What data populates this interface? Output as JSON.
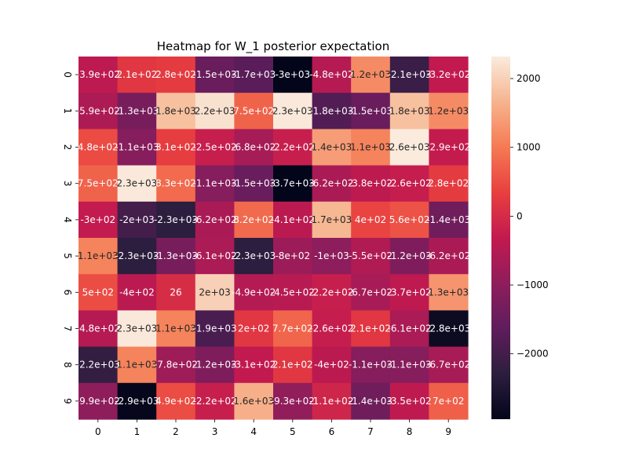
{
  "chart_data": {
    "type": "heatmap",
    "title": "Heatmap for W_1 posterior expectation",
    "xlabel": "",
    "ylabel": "",
    "x_categories": [
      "0",
      "1",
      "2",
      "3",
      "4",
      "5",
      "6",
      "7",
      "8",
      "9"
    ],
    "y_categories": [
      "0",
      "1",
      "2",
      "3",
      "4",
      "5",
      "6",
      "7",
      "8",
      "9"
    ],
    "values": [
      [
        -390,
        210,
        280,
        -1500,
        -1700,
        -3000,
        -480,
        1200,
        -2100,
        -320
      ],
      [
        -590,
        -1300,
        1800,
        2200,
        750,
        2300,
        -1800,
        -1500,
        1800,
        1200
      ],
      [
        480,
        -1100,
        310,
        -250,
        -680,
        -220,
        1400,
        1100,
        2600,
        -290
      ],
      [
        750,
        2300,
        830,
        -1100,
        -1500,
        -3700,
        -620,
        -380,
        -260,
        280
      ],
      [
        -300,
        -2000,
        -2300,
        -620,
        820,
        -410,
        1700,
        400,
        560,
        -1400
      ],
      [
        1100,
        -2300,
        -1300,
        -610,
        -2300,
        -800,
        -1000,
        -550,
        -1200,
        -620
      ],
      [
        500,
        -400,
        26,
        2000,
        -490,
        -450,
        -220,
        -670,
        -370,
        1300
      ],
      [
        -480,
        2300,
        1100,
        -1900,
        200,
        770,
        -260,
        210,
        -610,
        -2800
      ],
      [
        -2200,
        1100,
        -780,
        -1200,
        -310,
        210,
        -400,
        -1100,
        -1100,
        -670
      ],
      [
        -990,
        -2900,
        490,
        -220,
        1600,
        -930,
        -110,
        -1400,
        -350,
        700
      ]
    ],
    "cell_labels": [
      [
        "-3.9e+02",
        "2.1e+02",
        "2.8e+02",
        "-1.5e+03",
        "-1.7e+03",
        "-3e+03",
        "-4.8e+02",
        "1.2e+03",
        "-2.1e+03",
        "-3.2e+02"
      ],
      [
        "-5.9e+02",
        "-1.3e+03",
        "1.8e+03",
        "2.2e+03",
        "7.5e+02",
        "2.3e+03",
        "-1.8e+03",
        "-1.5e+03",
        "1.8e+03",
        "1.2e+03"
      ],
      [
        "4.8e+02",
        "-1.1e+03",
        "3.1e+02",
        "-2.5e+02",
        "-6.8e+02",
        "-2.2e+02",
        "1.4e+03",
        "1.1e+03",
        "2.6e+03",
        "-2.9e+02"
      ],
      [
        "7.5e+02",
        "2.3e+03",
        "8.3e+02",
        "-1.1e+03",
        "-1.5e+03",
        "-3.7e+03",
        "-6.2e+02",
        "-3.8e+02",
        "-2.6e+02",
        "2.8e+02"
      ],
      [
        "-3e+02",
        "-2e+03",
        "-2.3e+03",
        "-6.2e+02",
        "8.2e+02",
        "-4.1e+02",
        "1.7e+03",
        "4e+02",
        "5.6e+02",
        "-1.4e+03"
      ],
      [
        "1.1e+03",
        "-2.3e+03",
        "-1.3e+03",
        "-6.1e+02",
        "-2.3e+03",
        "-8e+02",
        "-1e+03",
        "-5.5e+02",
        "-1.2e+03",
        "-6.2e+02"
      ],
      [
        "5e+02",
        "-4e+02",
        "26",
        "2e+03",
        "-4.9e+02",
        "-4.5e+02",
        "-2.2e+02",
        "-6.7e+02",
        "-3.7e+02",
        "1.3e+03"
      ],
      [
        "-4.8e+02",
        "2.3e+03",
        "1.1e+03",
        "-1.9e+03",
        "2e+02",
        "7.7e+02",
        "-2.6e+02",
        "2.1e+02",
        "-6.1e+02",
        "-2.8e+03"
      ],
      [
        "-2.2e+03",
        "1.1e+03",
        "-7.8e+02",
        "-1.2e+03",
        "-3.1e+02",
        "2.1e+02",
        "-4e+02",
        "-1.1e+03",
        "-1.1e+03",
        "-6.7e+02"
      ],
      [
        "-9.9e+02",
        "-2.9e+03",
        "4.9e+02",
        "-2.2e+02",
        "1.6e+03",
        "-9.3e+02",
        "-1.1e+02",
        "-1.4e+03",
        "-3.5e+02",
        "7e+02"
      ]
    ],
    "colorbar": {
      "colormap": "rocket",
      "range": [
        -2950,
        2320
      ],
      "ticks": [
        2000,
        1000,
        0,
        -1000,
        -2000
      ],
      "tick_labels": [
        "2000",
        "1000",
        "0",
        "−1000",
        "−2000"
      ]
    },
    "grid": false,
    "legend": "none"
  }
}
